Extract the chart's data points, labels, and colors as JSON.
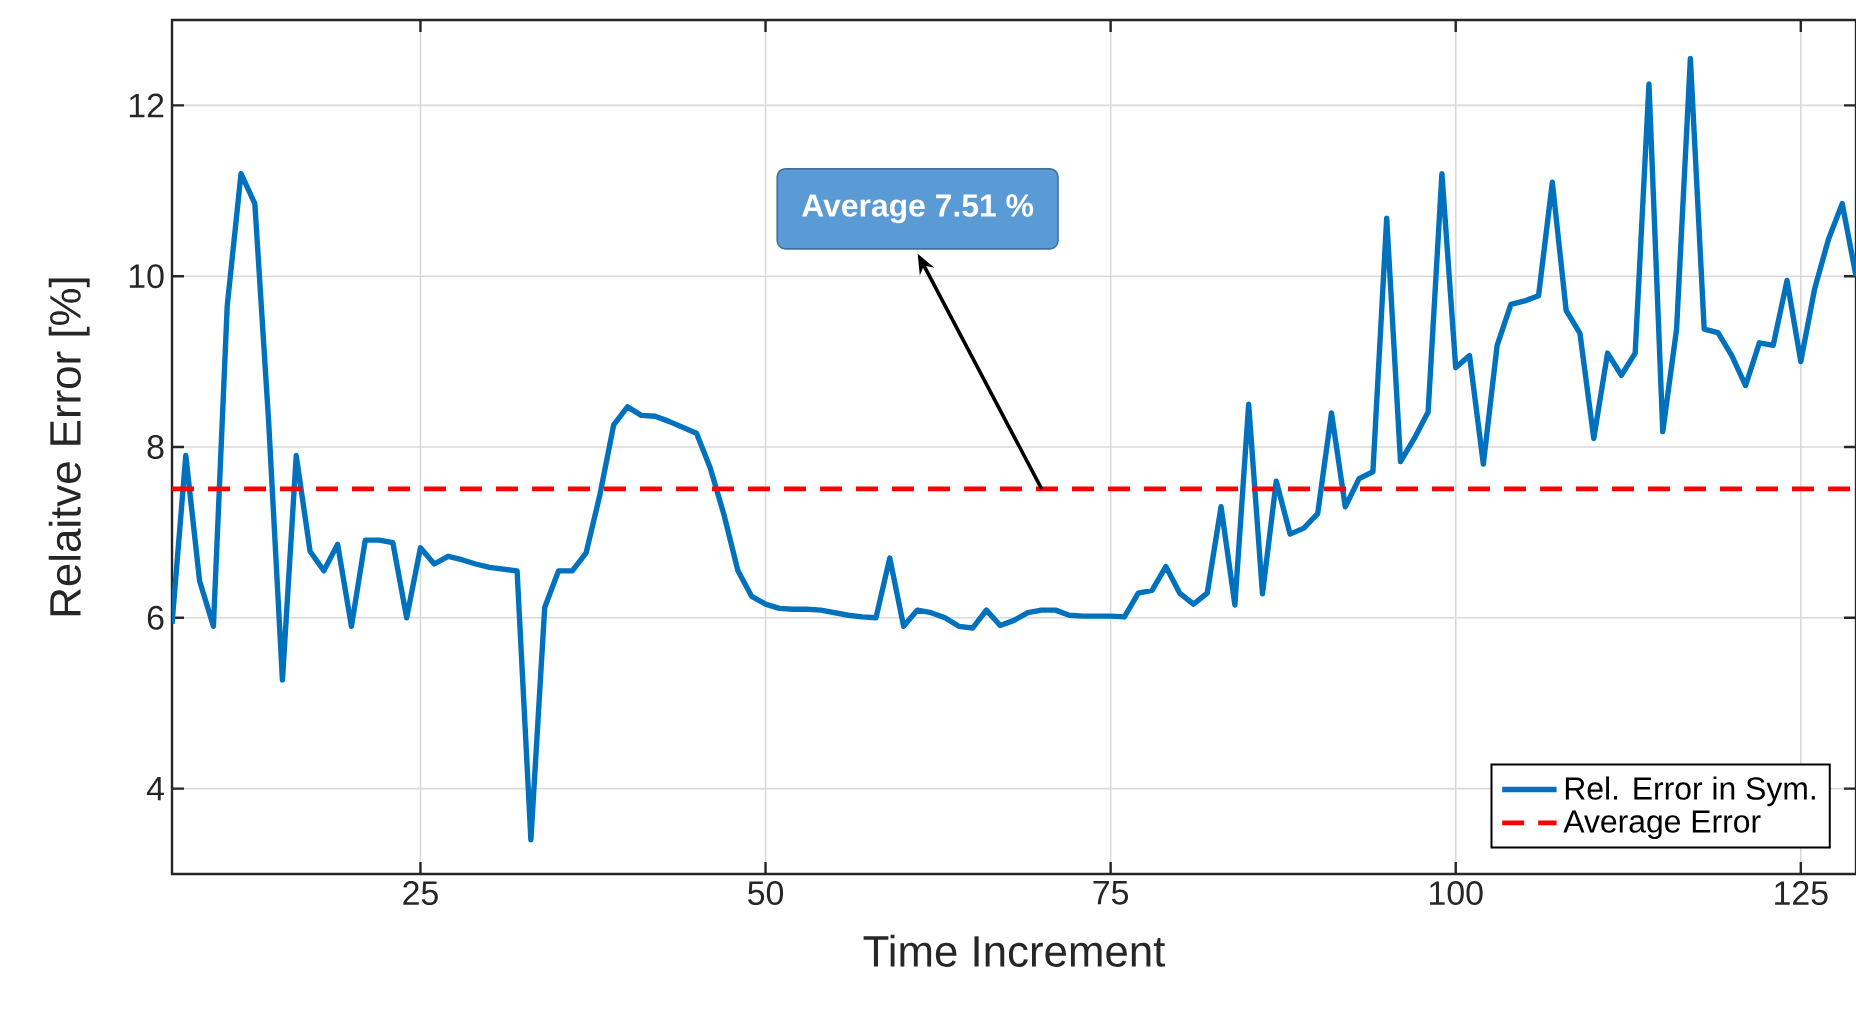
{
  "chart_data": {
    "type": "line",
    "xlabel": "Time Increment",
    "ylabel": "Relaitve Error [%]",
    "x": [
      7,
      8,
      9,
      10,
      11,
      12,
      13,
      14,
      15,
      16,
      17,
      18,
      19,
      20,
      21,
      22,
      23,
      24,
      25,
      26,
      27,
      28,
      29,
      30,
      31,
      32,
      33,
      34,
      35,
      36,
      37,
      38,
      39,
      40,
      41,
      42,
      43,
      44,
      45,
      46,
      47,
      48,
      49,
      50,
      51,
      52,
      53,
      54,
      55,
      56,
      57,
      58,
      59,
      60,
      61,
      62,
      63,
      64,
      65,
      66,
      67,
      68,
      69,
      70,
      71,
      72,
      73,
      74,
      75,
      76,
      77,
      78,
      79,
      80,
      81,
      82,
      83,
      84,
      85,
      86,
      87,
      88,
      89,
      90,
      91,
      92,
      93,
      94,
      95,
      96,
      97,
      98,
      99,
      100,
      101,
      102,
      103,
      104,
      105,
      106,
      107,
      108,
      109,
      110,
      111,
      112,
      113,
      114,
      115,
      116,
      117,
      118,
      119,
      120,
      121,
      122,
      123,
      124,
      125,
      126,
      127,
      128,
      129
    ],
    "series": [
      {
        "name": "Rel. Error in Sym.",
        "color": "#0072bd",
        "values": [
          5.93,
          7.9,
          6.43,
          5.9,
          9.65,
          11.2,
          10.85,
          8.3,
          5.27,
          7.9,
          6.78,
          6.55,
          6.86,
          5.9,
          6.91,
          6.91,
          6.88,
          6.0,
          6.82,
          6.63,
          6.72,
          6.68,
          6.63,
          6.59,
          6.57,
          6.55,
          3.4,
          6.12,
          6.55,
          6.55,
          6.76,
          7.44,
          8.26,
          8.47,
          8.37,
          8.36,
          8.3,
          8.23,
          8.16,
          7.75,
          7.2,
          6.55,
          6.25,
          6.16,
          6.11,
          6.1,
          6.1,
          6.09,
          6.06,
          6.03,
          6.01,
          6.0,
          6.7,
          5.9,
          6.09,
          6.06,
          6.0,
          5.9,
          5.88,
          6.09,
          5.91,
          5.97,
          6.06,
          6.09,
          6.09,
          6.03,
          6.02,
          6.02,
          6.02,
          6.01,
          6.29,
          6.32,
          6.6,
          6.29,
          6.16,
          6.29,
          7.3,
          6.15,
          8.5,
          6.28,
          7.6,
          6.98,
          7.05,
          7.22,
          8.4,
          7.3,
          7.63,
          7.71,
          10.68,
          7.83,
          8.1,
          8.41,
          11.2,
          8.93,
          9.07,
          7.8,
          9.19,
          9.67,
          9.71,
          9.77,
          11.1,
          9.6,
          9.33,
          8.1,
          9.1,
          8.84,
          9.1,
          12.25,
          8.18,
          9.38,
          12.55,
          9.38,
          9.34,
          9.07,
          8.72,
          9.22,
          9.19,
          9.95,
          9.0,
          9.85,
          10.43,
          10.85,
          10.0
        ]
      }
    ],
    "xlim": [
      7,
      129
    ],
    "ylim": [
      3,
      13
    ],
    "xticks": [
      25,
      50,
      75,
      100,
      125
    ],
    "yticks": [
      4,
      6,
      8,
      10,
      12
    ],
    "ref_lines": [
      {
        "axis": "y",
        "value": 7.51,
        "label": "Average Error",
        "color": "#ff0000",
        "line_style": "dashed"
      }
    ],
    "annotations": [
      {
        "text": "Average 7.51 %",
        "x": 70,
        "y": 7.51
      }
    ],
    "grid": true,
    "legend": "bottom right"
  }
}
